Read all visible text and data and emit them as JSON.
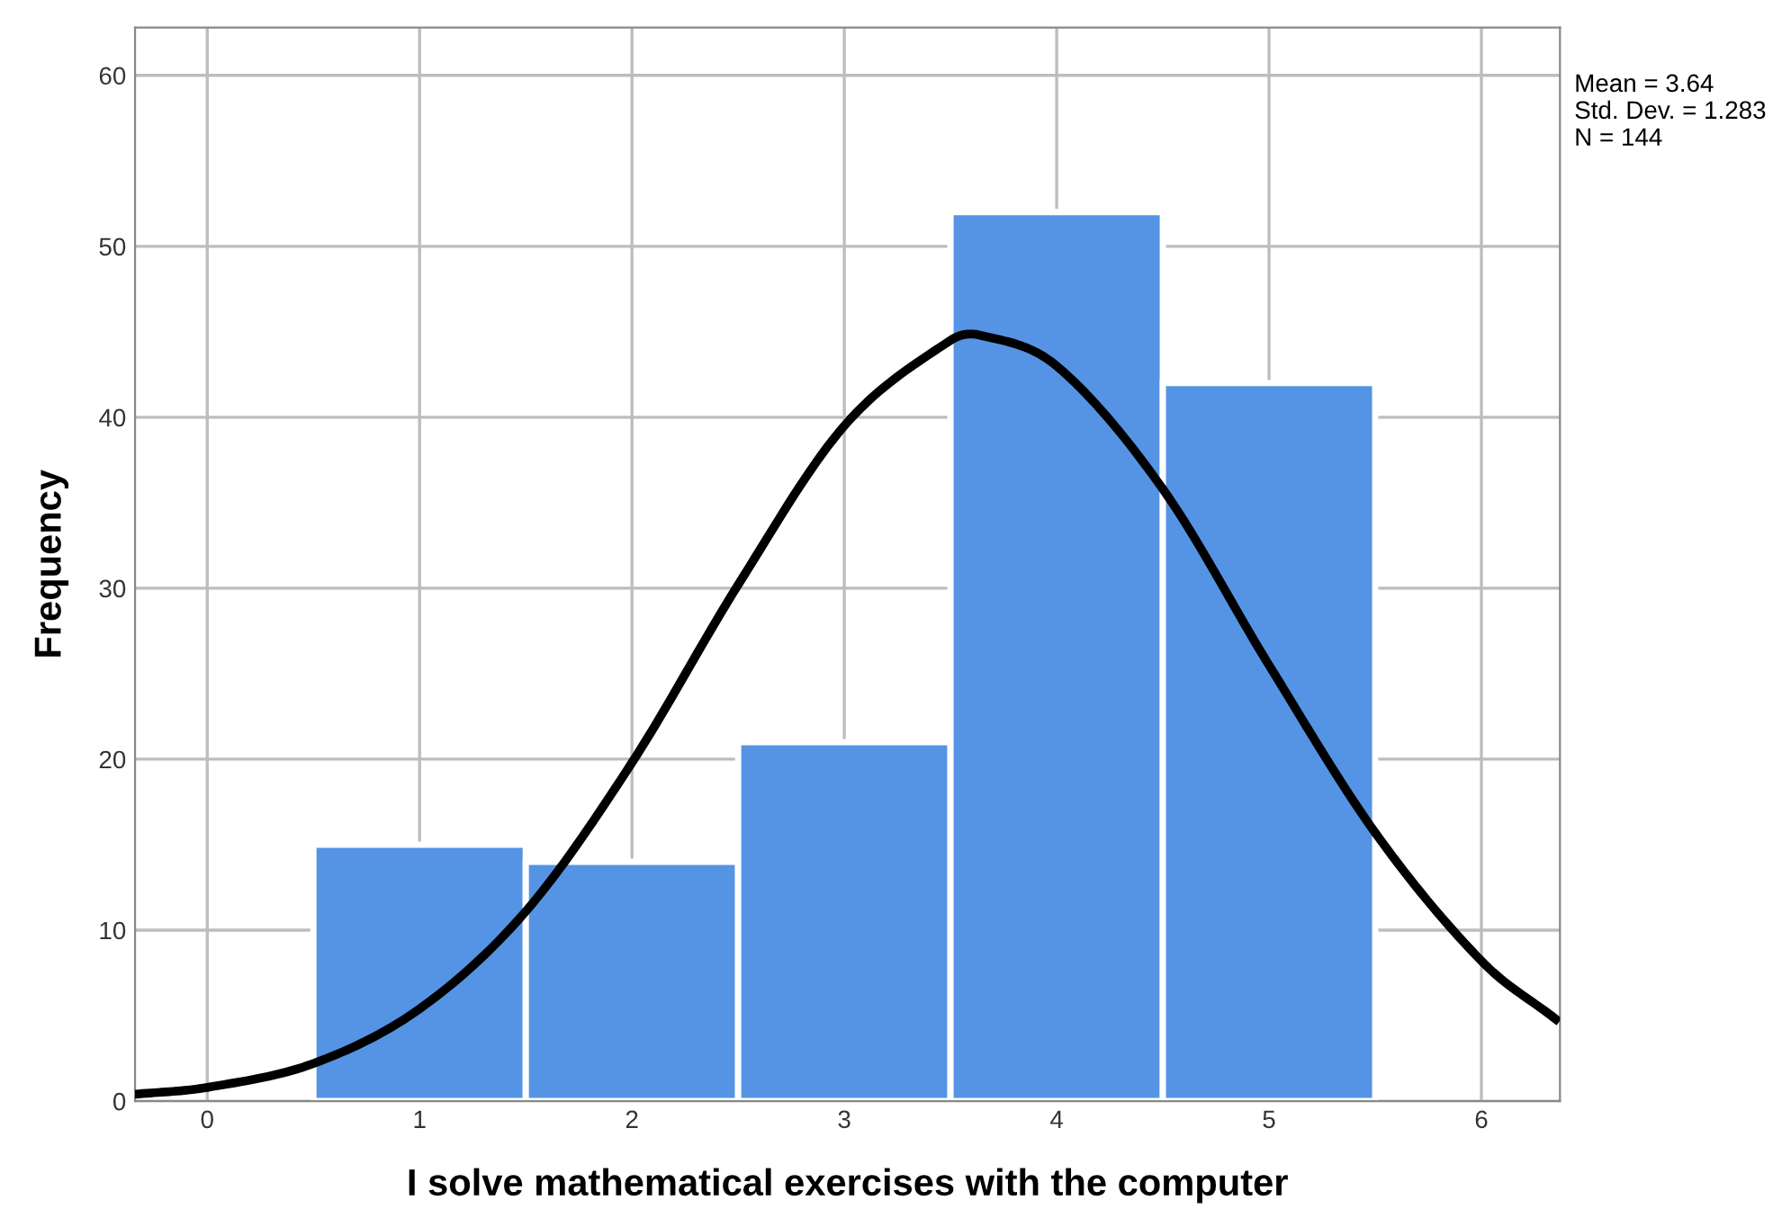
{
  "chart_data": {
    "type": "histogram",
    "xlabel": "I solve mathematical exercises with the computer",
    "ylabel": "Frequency",
    "bins": [
      0.5,
      1.5,
      2.5,
      3.5,
      4.5,
      5.5
    ],
    "values": [
      15,
      14,
      21,
      52,
      42
    ],
    "color": "#5594e4",
    "series": [
      {
        "type": "line",
        "color": "#000000",
        "x": [
          -0.34,
          0,
          0.5,
          1,
          1.5,
          2,
          2.5,
          3,
          3.5,
          3.64,
          4,
          4.5,
          5,
          5.5,
          6,
          6.35
        ],
        "values": [
          0.4,
          0.8,
          2.2,
          5.4,
          11.1,
          19.8,
          30.2,
          39.5,
          44.5,
          44.8,
          43.0,
          35.8,
          25.5,
          15.7,
          8.2,
          4.8
        ]
      }
    ],
    "xlim": [
      -0.34,
      6.37
    ],
    "xticks": [
      0,
      1,
      2,
      3,
      4,
      5,
      6
    ],
    "ylim": [
      0,
      62.8
    ],
    "yticks": [
      0,
      10,
      20,
      30,
      40,
      50,
      60
    ],
    "grid": true,
    "annotations": [
      "Mean = 3.64\nStd. Dev. = 1.283\nN = 144"
    ]
  }
}
